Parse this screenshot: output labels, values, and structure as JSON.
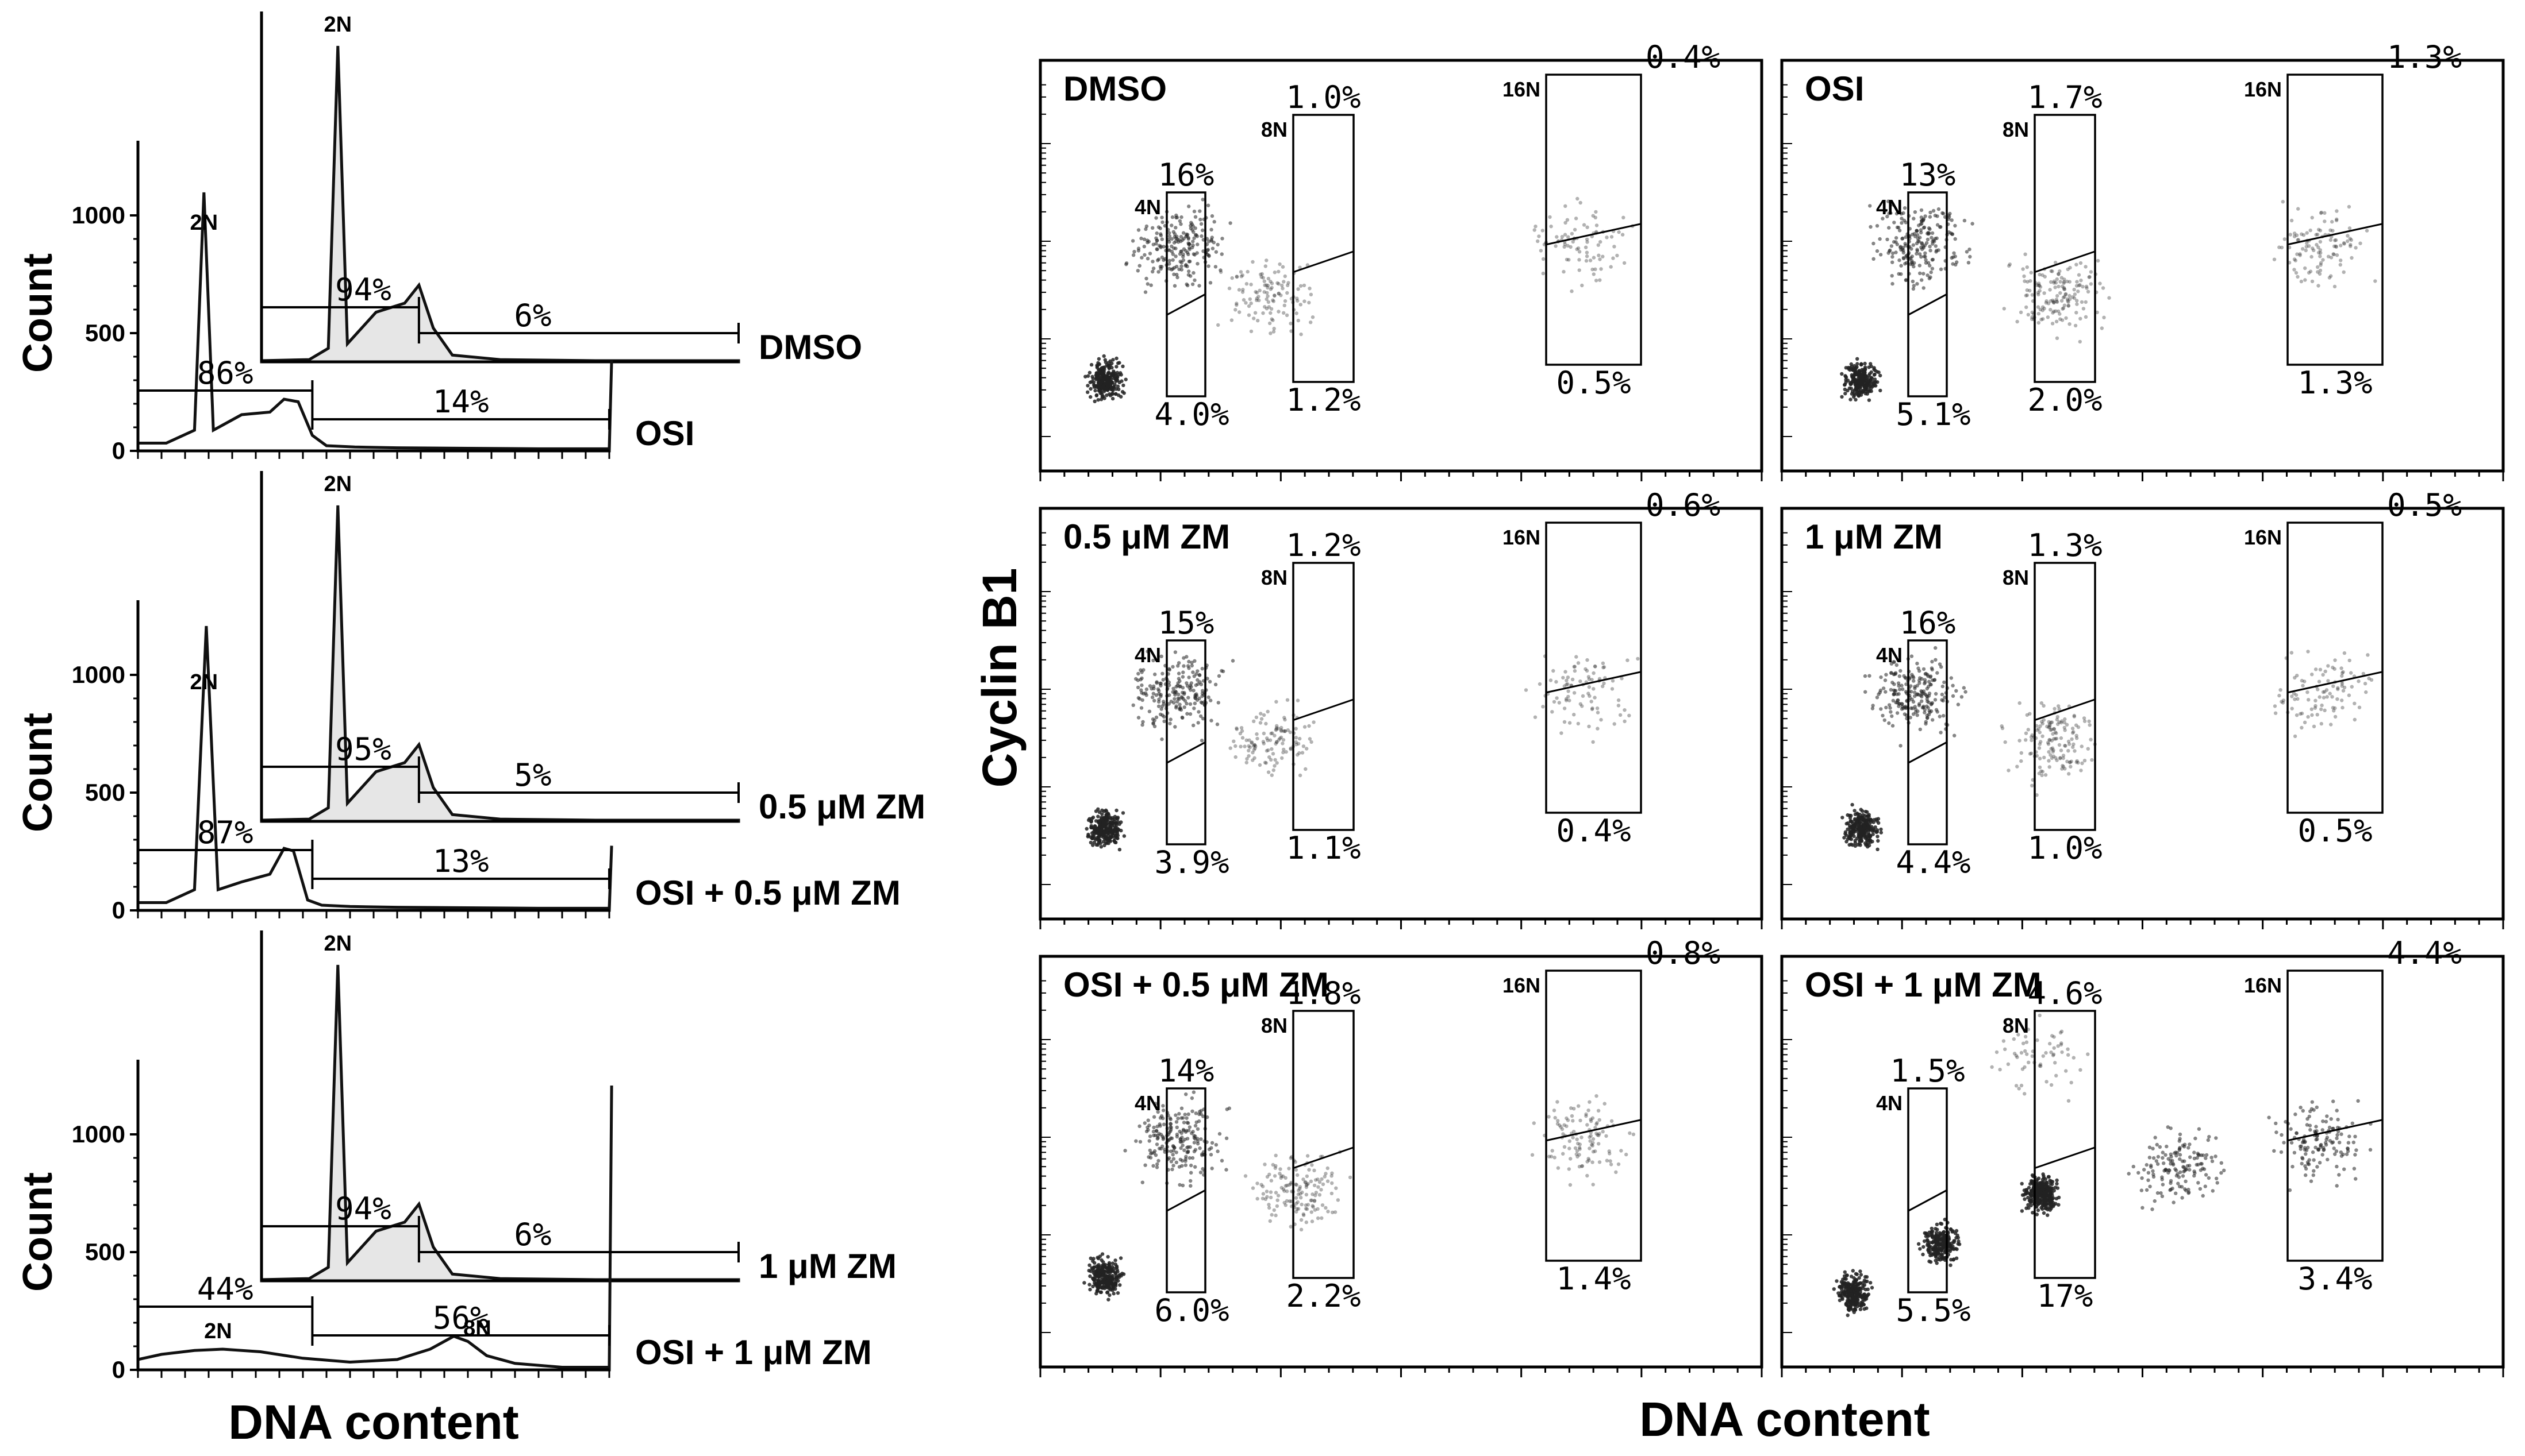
{
  "left_xlabel": "DNA content",
  "right_xlabel": "DNA content",
  "right_ylabel": "Cyclin B1",
  "histograms": [
    {
      "ylabel": "Count",
      "y_ticks": [
        "0",
        "500",
        "1000"
      ],
      "front": {
        "label": "OSI",
        "left_pct": "86%",
        "right_pct": "14%",
        "peak_labels": [
          "2N"
        ]
      },
      "back": {
        "label": "DMSO",
        "left_pct": "94%",
        "right_pct": "6%",
        "peak_labels": [
          "2N"
        ]
      }
    },
    {
      "ylabel": "Count",
      "y_ticks": [
        "0",
        "500",
        "1000"
      ],
      "front": {
        "label": "OSI + 0.5 μM ZM",
        "left_pct": "87%",
        "right_pct": "13%",
        "peak_labels": [
          "2N"
        ]
      },
      "back": {
        "label": "0.5 μM ZM",
        "left_pct": "95%",
        "right_pct": "5%",
        "peak_labels": [
          "2N"
        ]
      }
    },
    {
      "ylabel": "Count",
      "y_ticks": [
        "0",
        "500",
        "1000"
      ],
      "front": {
        "label": "OSI + 1 μM ZM",
        "left_pct": "44%",
        "right_pct": "56%",
        "peak_labels": [
          "2N",
          "8N"
        ]
      },
      "back": {
        "label": "1 μM ZM",
        "left_pct": "94%",
        "right_pct": "6%",
        "peak_labels": [
          "2N"
        ]
      }
    }
  ],
  "scatters": [
    {
      "title": "DMSO",
      "gates": [
        {
          "label": "4N",
          "upper": "16%",
          "lower": "4.0%"
        },
        {
          "label": "8N",
          "upper": "1.0%",
          "lower": "1.2%"
        },
        {
          "label": "16N",
          "upper": "0.4%",
          "lower": "0.5%"
        }
      ]
    },
    {
      "title": "OSI",
      "gates": [
        {
          "label": "4N",
          "upper": "13%",
          "lower": "5.1%"
        },
        {
          "label": "8N",
          "upper": "1.7%",
          "lower": "2.0%"
        },
        {
          "label": "16N",
          "upper": "1.3%",
          "lower": "1.3%"
        }
      ]
    },
    {
      "title": "0.5 μM ZM",
      "gates": [
        {
          "label": "4N",
          "upper": "15%",
          "lower": "3.9%"
        },
        {
          "label": "8N",
          "upper": "1.2%",
          "lower": "1.1%"
        },
        {
          "label": "16N",
          "upper": "0.6%",
          "lower": "0.4%"
        }
      ]
    },
    {
      "title": "1 μM ZM",
      "gates": [
        {
          "label": "4N",
          "upper": "16%",
          "lower": "4.4%"
        },
        {
          "label": "8N",
          "upper": "1.3%",
          "lower": "1.0%"
        },
        {
          "label": "16N",
          "upper": "0.5%",
          "lower": "0.5%"
        }
      ]
    },
    {
      "title": "OSI + 0.5 μM ZM",
      "gates": [
        {
          "label": "4N",
          "upper": "14%",
          "lower": "6.0%"
        },
        {
          "label": "8N",
          "upper": "1.8%",
          "lower": "2.2%"
        },
        {
          "label": "16N",
          "upper": "0.8%",
          "lower": "1.4%"
        }
      ]
    },
    {
      "title": "OSI + 1 μM ZM",
      "gates": [
        {
          "label": "4N",
          "upper": "1.5%",
          "lower": "5.5%"
        },
        {
          "label": "8N",
          "upper": "4.6%",
          "lower": "17%"
        },
        {
          "label": "16N",
          "upper": "4.4%",
          "lower": "3.4%"
        }
      ]
    }
  ],
  "chart_data": [
    {
      "type": "area",
      "panel": "left-top",
      "series": [
        {
          "name": "OSI",
          "front": true,
          "x": [
            0,
            6,
            12,
            14,
            16,
            22,
            28,
            31,
            34,
            37,
            40,
            46,
            55,
            70,
            85,
            100,
            100.5
          ],
          "y": [
            30,
            30,
            80,
            1000,
            80,
            140,
            150,
            200,
            190,
            60,
            20,
            15,
            12,
            10,
            8,
            8,
            350
          ],
          "stroke": "#111111",
          "fill": "#ffffff"
        },
        {
          "name": "DMSO",
          "front": false,
          "x": [
            0,
            10,
            14,
            16,
            18,
            24,
            30,
            33,
            36,
            40,
            50,
            70,
            100
          ],
          "y": [
            5,
            10,
            60,
            1400,
            80,
            220,
            260,
            340,
            150,
            30,
            10,
            5,
            5
          ],
          "stroke": "#111111",
          "fill": "#e6e6e6"
        }
      ]
    },
    {
      "type": "area",
      "panel": "left-middle",
      "series": [
        {
          "name": "OSI + 0.5 μM ZM",
          "front": true,
          "x": [
            0,
            6,
            12,
            14.5,
            17,
            22,
            28,
            31,
            33,
            36,
            39,
            45,
            55,
            70,
            85,
            100,
            100.5
          ],
          "y": [
            30,
            30,
            80,
            1100,
            80,
            110,
            140,
            240,
            230,
            40,
            20,
            15,
            12,
            10,
            8,
            8,
            250
          ],
          "stroke": "#111111",
          "fill": "#ffffff"
        },
        {
          "name": "0.5 μM ZM",
          "front": false,
          "x": [
            0,
            10,
            14,
            16,
            18,
            24,
            30,
            33,
            36,
            40,
            50,
            70,
            100
          ],
          "y": [
            5,
            10,
            60,
            1400,
            80,
            220,
            260,
            340,
            150,
            30,
            10,
            5,
            5
          ],
          "stroke": "#111111",
          "fill": "#e6e6e6"
        }
      ]
    },
    {
      "type": "area",
      "panel": "left-bottom",
      "series": [
        {
          "name": "OSI + 1 μM ZM",
          "front": true,
          "x": [
            0,
            5,
            12,
            18,
            26,
            35,
            45,
            55,
            62,
            67,
            70,
            74,
            80,
            90,
            100,
            100.5
          ],
          "y": [
            40,
            60,
            75,
            80,
            70,
            45,
            30,
            40,
            80,
            130,
            110,
            55,
            25,
            10,
            10,
            1100
          ],
          "stroke": "#111111",
          "fill": "#ffffff"
        },
        {
          "name": "1 μM ZM",
          "front": false,
          "x": [
            0,
            10,
            14,
            16,
            18,
            24,
            30,
            33,
            36,
            40,
            50,
            70,
            100
          ],
          "y": [
            5,
            10,
            60,
            1400,
            80,
            220,
            260,
            340,
            150,
            30,
            10,
            5,
            5
          ],
          "stroke": "#111111",
          "fill": "#e6e6e6"
        }
      ]
    },
    {
      "type": "scatter",
      "panels": [
        "DMSO",
        "OSI",
        "0.5 μM ZM",
        "1 μM ZM",
        "OSI + 0.5 μM ZM",
        "OSI + 1 μM ZM"
      ],
      "axes": {
        "x": "DNA content",
        "y": "Cyclin B1"
      },
      "y_scale": "log",
      "regions": [
        {
          "panel": "DMSO",
          "clusters": [
            {
              "x": 9,
              "y": 22,
              "n": 260,
              "density": "high"
            },
            {
              "x": 19,
              "y": 55,
              "n": 220,
              "density": "mid"
            },
            {
              "x": 32,
              "y": 43,
              "n": 120,
              "density": "low"
            },
            {
              "x": 75,
              "y": 55,
              "n": 90,
              "density": "low"
            }
          ]
        },
        {
          "panel": "OSI",
          "clusters": [
            {
              "x": 11,
              "y": 22,
              "n": 240,
              "density": "high"
            },
            {
              "x": 19,
              "y": 55,
              "n": 220,
              "density": "mid"
            },
            {
              "x": 38,
              "y": 43,
              "n": 160,
              "density": "low"
            },
            {
              "x": 75,
              "y": 55,
              "n": 110,
              "density": "low"
            }
          ]
        },
        {
          "panel": "0.5 μM ZM",
          "clusters": [
            {
              "x": 9,
              "y": 22,
              "n": 260,
              "density": "high"
            },
            {
              "x": 19,
              "y": 55,
              "n": 210,
              "density": "mid"
            },
            {
              "x": 32,
              "y": 43,
              "n": 120,
              "density": "low"
            },
            {
              "x": 75,
              "y": 55,
              "n": 90,
              "density": "low"
            }
          ]
        },
        {
          "panel": "1 μM ZM",
          "clusters": [
            {
              "x": 11,
              "y": 22,
              "n": 240,
              "density": "high"
            },
            {
              "x": 19,
              "y": 55,
              "n": 220,
              "density": "mid"
            },
            {
              "x": 38,
              "y": 43,
              "n": 150,
              "density": "low"
            },
            {
              "x": 75,
              "y": 55,
              "n": 100,
              "density": "low"
            }
          ]
        },
        {
          "panel": "OSI + 0.5 μM ZM",
          "clusters": [
            {
              "x": 9,
              "y": 22,
              "n": 250,
              "density": "high"
            },
            {
              "x": 19,
              "y": 55,
              "n": 210,
              "density": "mid"
            },
            {
              "x": 36,
              "y": 43,
              "n": 150,
              "density": "low"
            },
            {
              "x": 75,
              "y": 55,
              "n": 110,
              "density": "low"
            }
          ]
        },
        {
          "panel": "OSI + 1 μM ZM",
          "clusters": [
            {
              "x": 10,
              "y": 18,
              "n": 260,
              "density": "high"
            },
            {
              "x": 22,
              "y": 30,
              "n": 230,
              "density": "high"
            },
            {
              "x": 36,
              "y": 42,
              "n": 300,
              "density": "high"
            },
            {
              "x": 55,
              "y": 48,
              "n": 150,
              "density": "mid"
            },
            {
              "x": 75,
              "y": 55,
              "n": 140,
              "density": "mid"
            },
            {
              "x": 36,
              "y": 75,
              "n": 60,
              "density": "low"
            }
          ]
        }
      ]
    }
  ]
}
